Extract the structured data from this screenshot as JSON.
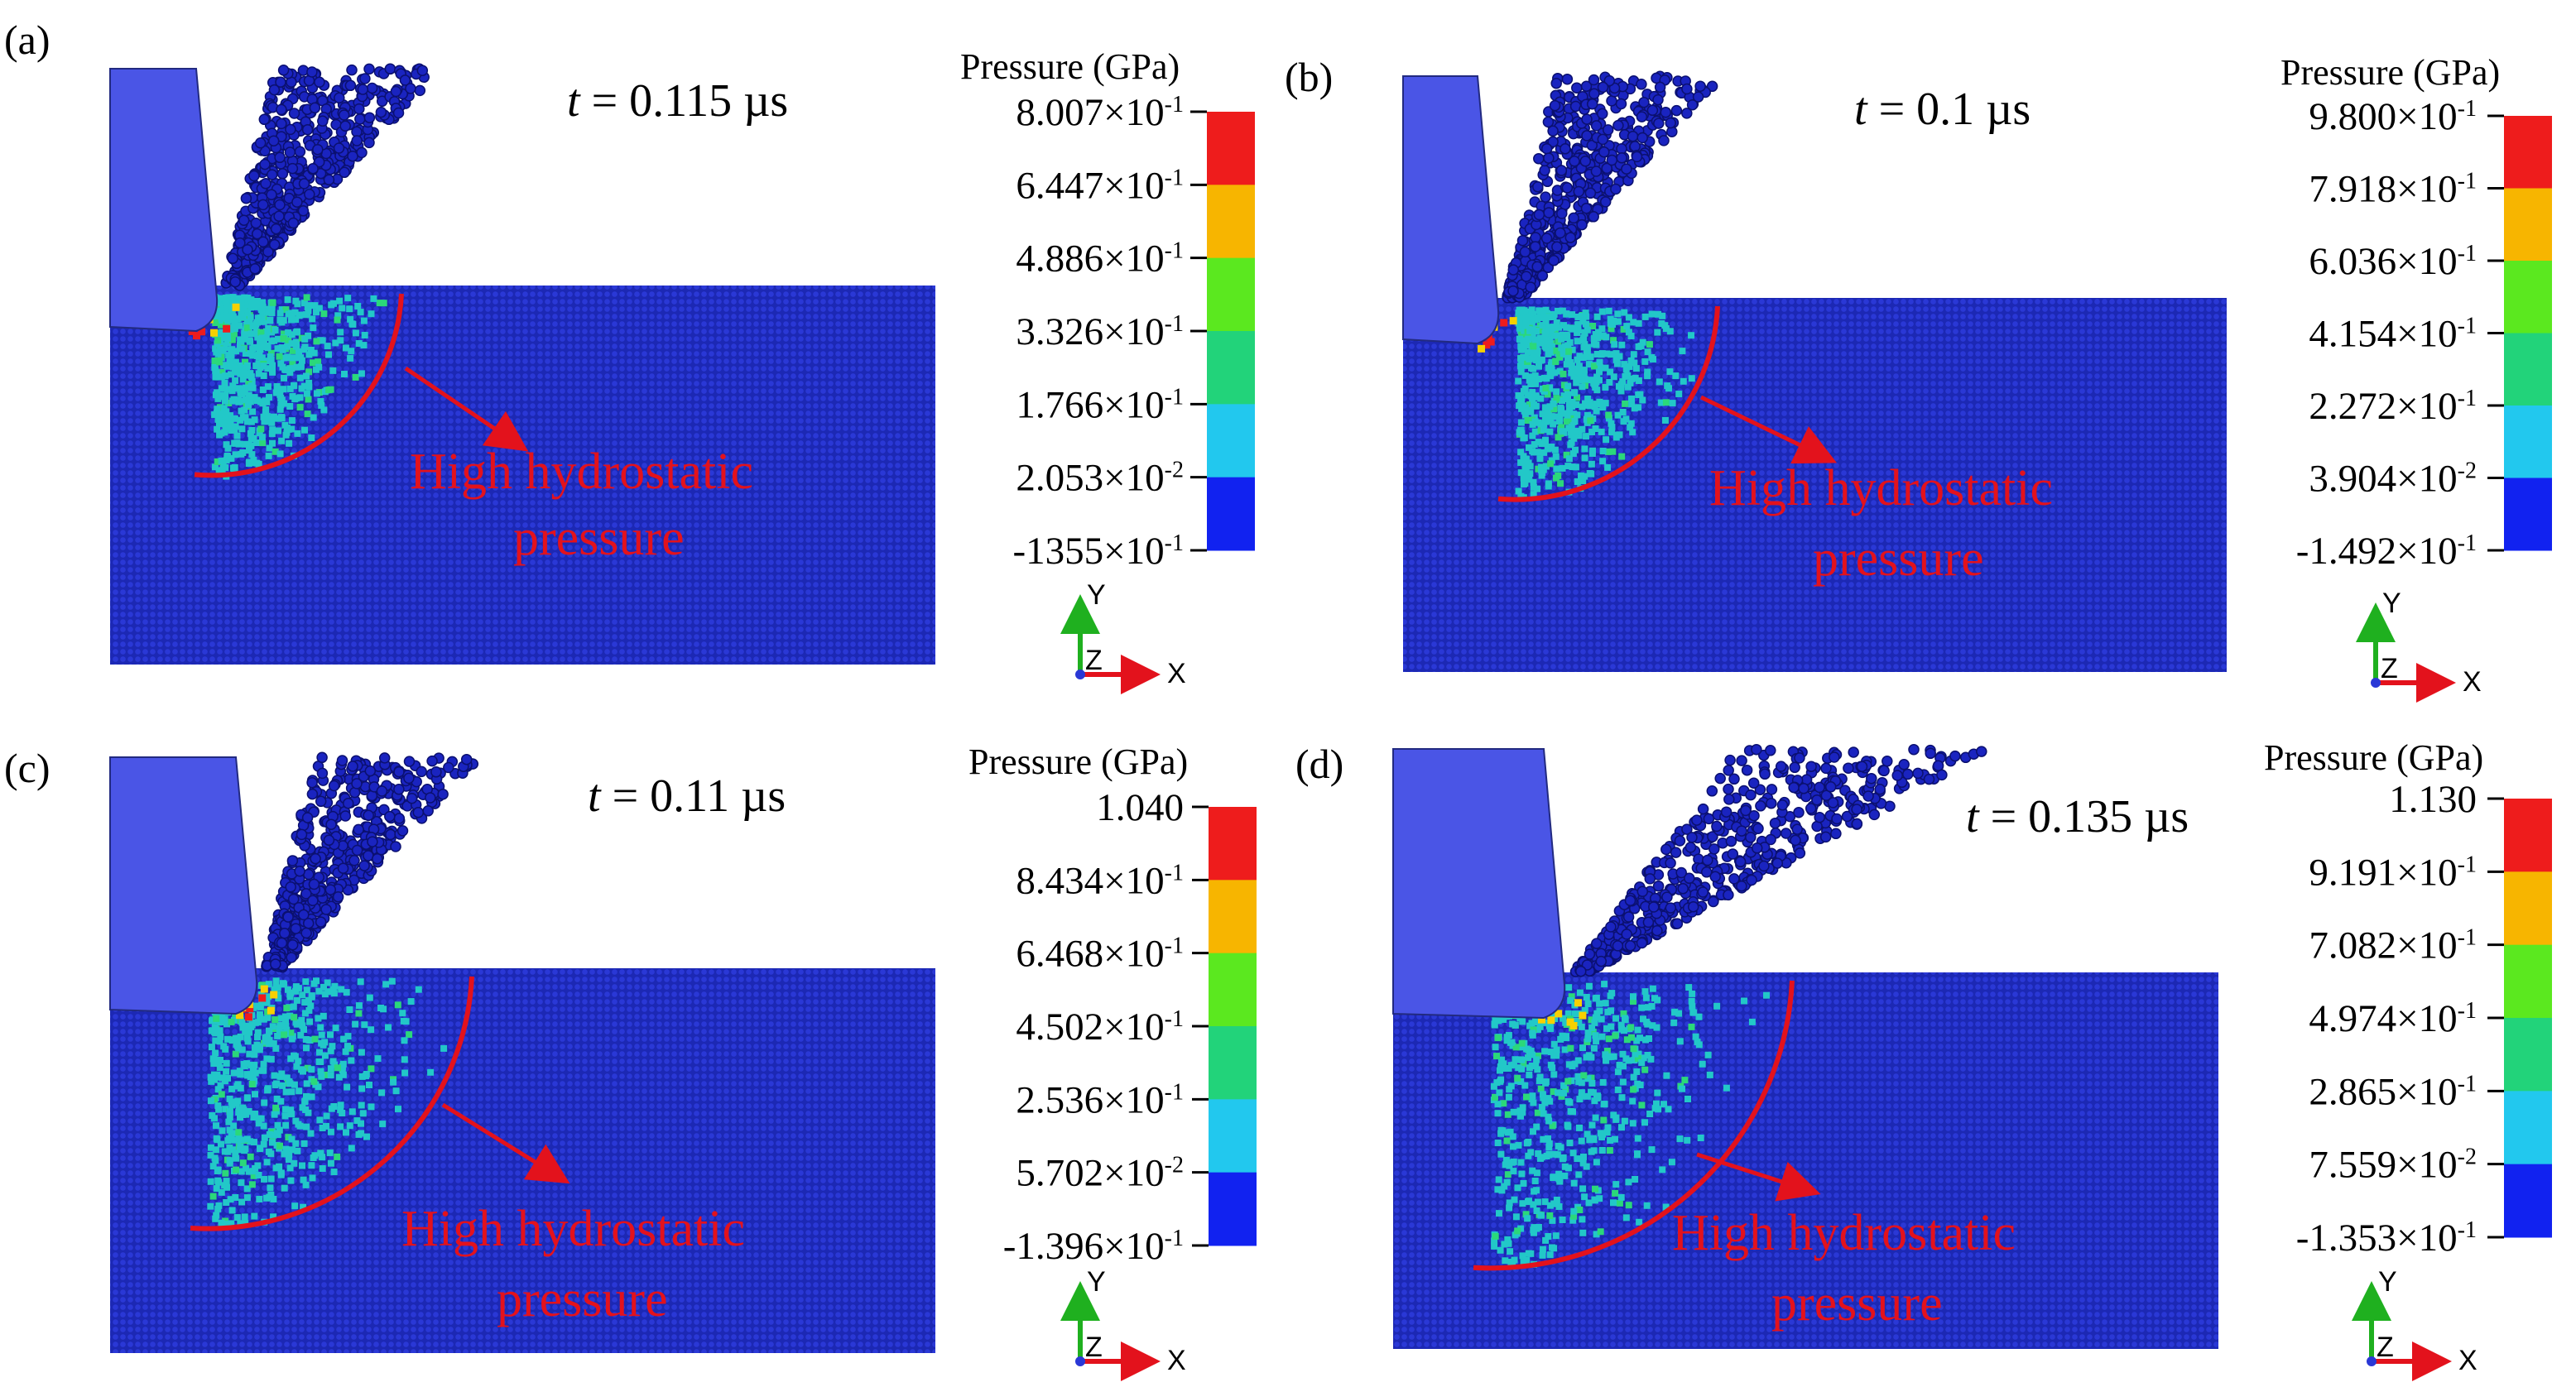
{
  "colors": {
    "workpiece": "#1e2bbd",
    "tool": "#4a55e6",
    "annotation": "#e3121c",
    "scale": [
      "#ee1c1c",
      "#f7b500",
      "#5be81f",
      "#22d37a",
      "#22c8ee",
      "#1122f0"
    ]
  },
  "icons": {
    "axis_triad": "xyz-axis-triad-icon",
    "arrow": "red-arrow"
  },
  "panels": [
    {
      "label": "(a)",
      "time_prefix": "t",
      "time_value": " = 0.115 µs",
      "legend_title": "Pressure (GPa)",
      "ticks": [
        "8.007×10",
        "6.447×10",
        "4.886×10",
        "3.326×10",
        "1.766×10",
        "2.053×10",
        "-1355×10"
      ],
      "exps": [
        "-1",
        "-1",
        "-1",
        "-1",
        "-1",
        "-2",
        "-1"
      ],
      "annotation_line1": "High hydrostatic",
      "annotation_line2": "pressure",
      "axis_x": "X",
      "axis_y": "Y",
      "axis_z": "Z"
    },
    {
      "label": "(b)",
      "time_prefix": "t",
      "time_value": " = 0.1 µs",
      "legend_title": "Pressure (GPa)",
      "ticks": [
        "9.800×10",
        "7.918×10",
        "6.036×10",
        "4.154×10",
        "2.272×10",
        "3.904×10",
        "-1.492×10"
      ],
      "exps": [
        "-1",
        "-1",
        "-1",
        "-1",
        "-1",
        "-2",
        "-1"
      ],
      "annotation_line1": "High hydrostatic",
      "annotation_line2": "pressure",
      "axis_x": "X",
      "axis_y": "Y",
      "axis_z": "Z"
    },
    {
      "label": "(c)",
      "time_prefix": "t",
      "time_value": " = 0.11 µs",
      "legend_title": "Pressure (GPa)",
      "ticks": [
        "1.040",
        "8.434×10",
        "6.468×10",
        "4.502×10",
        "2.536×10",
        "5.702×10",
        "-1.396×10"
      ],
      "exps": [
        "",
        "-1",
        "-1",
        "-1",
        "-1",
        "-2",
        "-1"
      ],
      "annotation_line1": "High hydrostatic",
      "annotation_line2": "pressure",
      "axis_x": "X",
      "axis_y": "Y",
      "axis_z": "Z"
    },
    {
      "label": "(d)",
      "time_prefix": "t",
      "time_value": " = 0.135 µs",
      "legend_title": "Pressure (GPa)",
      "ticks": [
        "1.130",
        "9.191×10",
        "7.082×10",
        "4.974×10",
        "2.865×10",
        "7.559×10",
        "-1.353×10"
      ],
      "exps": [
        "",
        "-1",
        "-1",
        "-1",
        "-1",
        "-2",
        "-1"
      ],
      "annotation_line1": "High hydrostatic",
      "annotation_line2": "pressure",
      "axis_x": "X",
      "axis_y": "Y",
      "axis_z": "Z"
    }
  ]
}
